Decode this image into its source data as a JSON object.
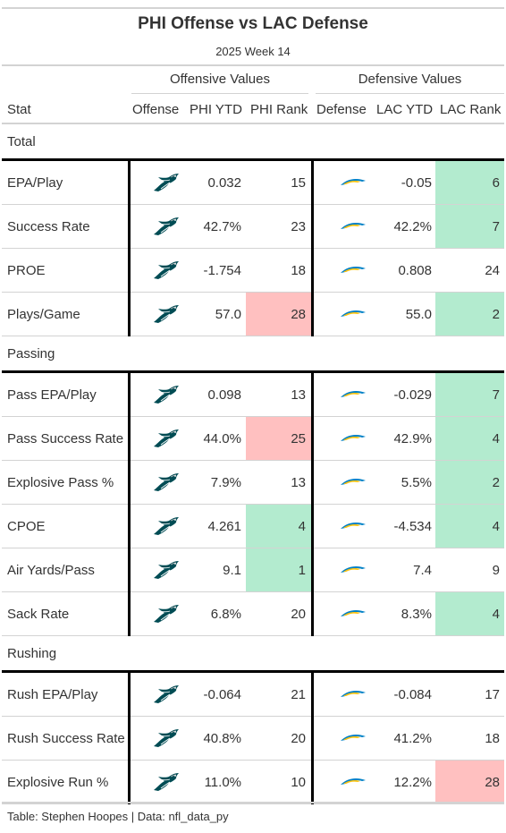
{
  "title": "PHI Offense vs LAC Defense",
  "subtitle": "2025 Week 14",
  "spanners": {
    "offense": "Offensive Values",
    "defense": "Defensive Values"
  },
  "columns": {
    "stat": "Stat",
    "offense": "Offense",
    "off_ytd": "PHI YTD",
    "off_rank": "PHI Rank",
    "defense": "Defense",
    "def_ytd": "LAC YTD",
    "def_rank": "LAC Rank"
  },
  "icons": {
    "offense": "eagles-logo-icon",
    "defense": "chargers-logo-icon"
  },
  "colors": {
    "good": "#b3ebcf",
    "bad": "#ffc0c0",
    "eagles_green": "#004c54",
    "chargers_blue": "#0080c6",
    "chargers_gold": "#ffc20e"
  },
  "groups": [
    {
      "label": "Total",
      "rows": [
        {
          "stat": "EPA/Play",
          "off_ytd": "0.032",
          "off_rank": "15",
          "off_hl": "",
          "def_ytd": "-0.05",
          "def_rank": "6",
          "def_hl": "good"
        },
        {
          "stat": "Success Rate",
          "off_ytd": "42.7%",
          "off_rank": "23",
          "off_hl": "",
          "def_ytd": "42.2%",
          "def_rank": "7",
          "def_hl": "good"
        },
        {
          "stat": "PROE",
          "off_ytd": "-1.754",
          "off_rank": "18",
          "off_hl": "",
          "def_ytd": "0.808",
          "def_rank": "24",
          "def_hl": ""
        },
        {
          "stat": "Plays/Game",
          "off_ytd": "57.0",
          "off_rank": "28",
          "off_hl": "bad",
          "def_ytd": "55.0",
          "def_rank": "2",
          "def_hl": "good"
        }
      ]
    },
    {
      "label": "Passing",
      "rows": [
        {
          "stat": "Pass EPA/Play",
          "off_ytd": "0.098",
          "off_rank": "13",
          "off_hl": "",
          "def_ytd": "-0.029",
          "def_rank": "7",
          "def_hl": "good"
        },
        {
          "stat": "Pass Success Rate",
          "off_ytd": "44.0%",
          "off_rank": "25",
          "off_hl": "bad",
          "def_ytd": "42.9%",
          "def_rank": "4",
          "def_hl": "good"
        },
        {
          "stat": "Explosive Pass %",
          "off_ytd": "7.9%",
          "off_rank": "13",
          "off_hl": "",
          "def_ytd": "5.5%",
          "def_rank": "2",
          "def_hl": "good"
        },
        {
          "stat": "CPOE",
          "off_ytd": "4.261",
          "off_rank": "4",
          "off_hl": "good",
          "def_ytd": "-4.534",
          "def_rank": "4",
          "def_hl": "good"
        },
        {
          "stat": "Air Yards/Pass",
          "off_ytd": "9.1",
          "off_rank": "1",
          "off_hl": "good",
          "def_ytd": "7.4",
          "def_rank": "9",
          "def_hl": ""
        },
        {
          "stat": "Sack Rate",
          "off_ytd": "6.8%",
          "off_rank": "20",
          "off_hl": "",
          "def_ytd": "8.3%",
          "def_rank": "4",
          "def_hl": "good"
        }
      ]
    },
    {
      "label": "Rushing",
      "rows": [
        {
          "stat": "Rush EPA/Play",
          "off_ytd": "-0.064",
          "off_rank": "21",
          "off_hl": "",
          "def_ytd": "-0.084",
          "def_rank": "17",
          "def_hl": ""
        },
        {
          "stat": "Rush Success Rate",
          "off_ytd": "40.8%",
          "off_rank": "20",
          "off_hl": "",
          "def_ytd": "41.2%",
          "def_rank": "18",
          "def_hl": ""
        },
        {
          "stat": "Explosive Run %",
          "off_ytd": "11.0%",
          "off_rank": "10",
          "off_hl": "",
          "def_ytd": "12.2%",
          "def_rank": "28",
          "def_hl": "bad"
        }
      ]
    }
  ],
  "footer": "Table: Stephen Hoopes | Data: nfl_data_py"
}
